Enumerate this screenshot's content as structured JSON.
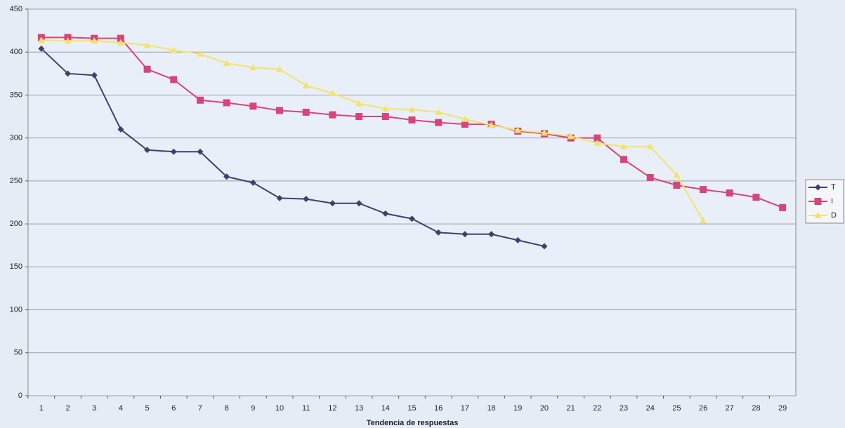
{
  "chart_data": {
    "type": "line",
    "x_label": "Tendencia de respuestas",
    "categories": [
      1,
      2,
      3,
      4,
      5,
      6,
      7,
      8,
      9,
      10,
      11,
      12,
      13,
      14,
      15,
      16,
      17,
      18,
      19,
      20,
      21,
      22,
      23,
      24,
      25,
      26,
      27,
      28,
      29
    ],
    "series": [
      {
        "name": "T",
        "color": "#3d4170",
        "marker": "diamond",
        "values": [
          404,
          375,
          373,
          310,
          286,
          284,
          284,
          255,
          248,
          230,
          229,
          224,
          224,
          212,
          206,
          190,
          188,
          188,
          181,
          174,
          null,
          null,
          null,
          null,
          null,
          null,
          null,
          null,
          null
        ]
      },
      {
        "name": "I",
        "color": "#d9437a",
        "marker": "square",
        "values": [
          417,
          417,
          416,
          416,
          380,
          368,
          344,
          341,
          337,
          332,
          330,
          327,
          325,
          325,
          321,
          318,
          316,
          316,
          308,
          305,
          300,
          300,
          275,
          254,
          245,
          240,
          236,
          231,
          219
        ]
      },
      {
        "name": "D",
        "color": "#f3e36a",
        "marker": "triangle",
        "values": [
          414,
          413,
          413,
          411,
          408,
          402,
          398,
          387,
          382,
          380,
          361,
          352,
          340,
          334,
          333,
          330,
          322,
          315,
          309,
          306,
          302,
          294,
          290,
          290,
          257,
          204,
          null,
          null,
          null
        ]
      }
    ],
    "ylim": [
      0,
      450
    ],
    "yticks": [
      0,
      50,
      100,
      150,
      200,
      250,
      300,
      350,
      400,
      450
    ],
    "grid": true,
    "legend": "right"
  }
}
